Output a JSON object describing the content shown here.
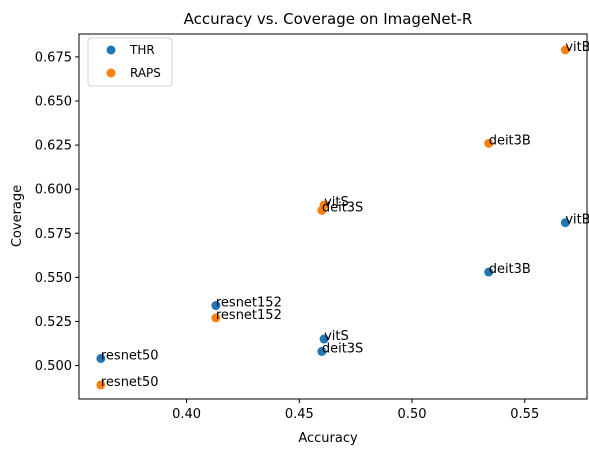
{
  "chart_data": {
    "type": "scatter",
    "title": "Accuracy vs. Coverage on ImageNet-R",
    "xlabel": "Accuracy",
    "ylabel": "Coverage",
    "xlim": [
      0.3523,
      0.5776
    ],
    "ylim": [
      0.481,
      0.688
    ],
    "xticks": [
      "0.40",
      "0.45",
      "0.50",
      "0.55"
    ],
    "xtick_values": [
      0.4,
      0.45,
      0.5,
      0.55
    ],
    "yticks": [
      "0.500",
      "0.525",
      "0.550",
      "0.575",
      "0.600",
      "0.625",
      "0.650",
      "0.675"
    ],
    "ytick_values": [
      0.5,
      0.525,
      0.55,
      0.575,
      0.6,
      0.625,
      0.65,
      0.675
    ],
    "grid": false,
    "legend_position": "top-left",
    "series": [
      {
        "name": "THR",
        "color": "#1f77b4",
        "points": [
          {
            "label": "resnet50",
            "x": 0.362,
            "y": 0.504
          },
          {
            "label": "resnet152",
            "x": 0.413,
            "y": 0.534
          },
          {
            "label": "vitS",
            "x": 0.461,
            "y": 0.515
          },
          {
            "label": "deit3S",
            "x": 0.46,
            "y": 0.508
          },
          {
            "label": "deit3B",
            "x": 0.534,
            "y": 0.553
          },
          {
            "label": "vitB",
            "x": 0.568,
            "y": 0.581
          }
        ]
      },
      {
        "name": "RAPS",
        "color": "#ff7f0e",
        "points": [
          {
            "label": "resnet50",
            "x": 0.362,
            "y": 0.489
          },
          {
            "label": "resnet152",
            "x": 0.413,
            "y": 0.527
          },
          {
            "label": "vitS",
            "x": 0.461,
            "y": 0.591
          },
          {
            "label": "deit3S",
            "x": 0.46,
            "y": 0.588
          },
          {
            "label": "deit3B",
            "x": 0.534,
            "y": 0.626
          },
          {
            "label": "vitB",
            "x": 0.568,
            "y": 0.679
          }
        ]
      }
    ]
  }
}
